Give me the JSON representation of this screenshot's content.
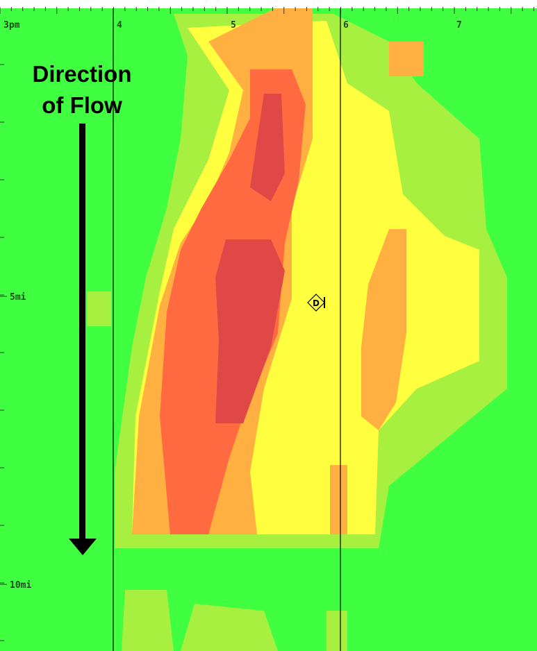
{
  "x_axis": {
    "ticks": [
      "3pm",
      "4",
      "5",
      "6",
      "7"
    ]
  },
  "y_axis": {
    "ticks": [
      "5mi",
      "10mi"
    ]
  },
  "annotation": {
    "lines": [
      "Direction",
      "of Flow"
    ]
  },
  "marker": {
    "label": "D"
  }
}
